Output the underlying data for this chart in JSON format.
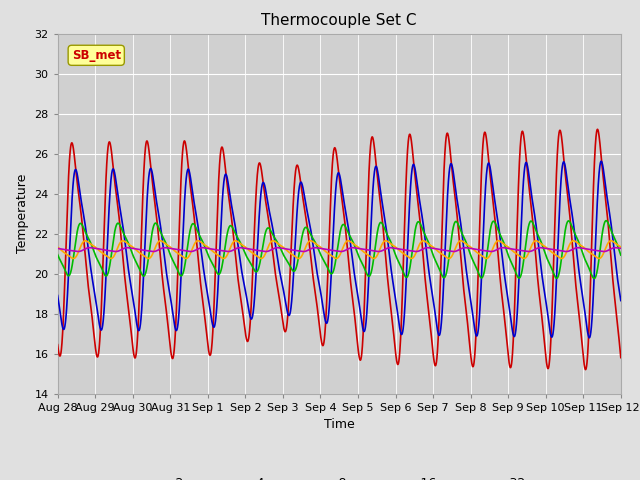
{
  "title": "Thermocouple Set C",
  "xlabel": "Time",
  "ylabel": "Temperature",
  "ylim": [
    14,
    32
  ],
  "yticks": [
    14,
    16,
    18,
    20,
    22,
    24,
    26,
    28,
    30,
    32
  ],
  "fig_facecolor": "#e0e0e0",
  "plot_bg_color": "#d0d0d0",
  "series": {
    "-2cm": {
      "color": "#cc0000",
      "lw": 1.2
    },
    "-4cm": {
      "color": "#0000cc",
      "lw": 1.2
    },
    "-8cm": {
      "color": "#00bb00",
      "lw": 1.2
    },
    "-16cm": {
      "color": "#ffaa00",
      "lw": 1.2
    },
    "-32cm": {
      "color": "#bb00bb",
      "lw": 1.2
    }
  },
  "mean_temp": 21.2,
  "amplitudes": {
    "-2cm": 7.5,
    "-4cm": 5.5,
    "-8cm": 1.8,
    "-16cm": 0.55,
    "-32cm": 0.12
  },
  "phase_shifts_days": {
    "-2cm": 0.22,
    "-4cm": 0.32,
    "-8cm": 0.45,
    "-16cm": 0.58,
    "-32cm": 0.7
  },
  "xtick_labels": [
    "Aug 28",
    "Aug 29",
    "Aug 30",
    "Aug 31",
    "Sep 1",
    "Sep 2",
    "Sep 3",
    "Sep 4",
    "Sep 5",
    "Sep 6",
    "Sep 7",
    "Sep 8",
    "Sep 9",
    "Sep 10",
    "Sep 11",
    "Sep 12"
  ],
  "xtick_days": [
    0,
    1,
    2,
    3,
    4,
    5,
    6,
    7,
    8,
    9,
    10,
    11,
    12,
    13,
    14,
    15
  ]
}
